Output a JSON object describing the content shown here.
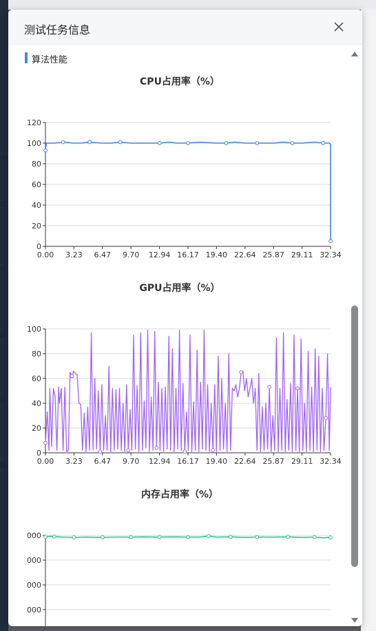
{
  "dialog": {
    "title": "测试任务信息",
    "section_label": "算法性能"
  },
  "background": {
    "edge_labels": [
      "m",
      "0",
      "0",
      "0",
      "0",
      "0"
    ]
  },
  "colors": {
    "cpu": "#3a86ef",
    "gpu": "#9f63f5",
    "memory": "#2cc38b",
    "section_accent": "#3a8ee6"
  },
  "chart_data": [
    {
      "type": "line",
      "title": "CPU占用率（%）",
      "x_ticks": [
        "0.00",
        "3.23",
        "6.47",
        "9.70",
        "12.94",
        "16.17",
        "19.40",
        "22.64",
        "25.87",
        "29.11",
        "32.34"
      ],
      "y_ticks": [
        "0",
        "20",
        "40",
        "60",
        "80",
        "100",
        "120"
      ],
      "xlim": [
        0,
        32.34
      ],
      "ylim": [
        0,
        120
      ],
      "grid": true,
      "series": [
        {
          "x": [
            0.0,
            0.1,
            1.0,
            2.0,
            3.23,
            4.0,
            5.0,
            6.47,
            7.5,
            8.5,
            9.7,
            11.0,
            12.94,
            14.0,
            15.0,
            16.17,
            17.5,
            19.4,
            20.5,
            21.5,
            22.64,
            24.0,
            25.87,
            27.0,
            28.0,
            29.11,
            30.5,
            31.5,
            32.2,
            32.34,
            32.34
          ],
          "values": [
            93,
            100,
            100,
            101,
            100,
            100,
            101,
            100,
            100,
            101,
            100,
            100,
            100,
            101,
            100,
            100,
            101,
            100,
            100,
            101,
            100,
            100,
            100,
            101,
            100,
            100,
            101,
            100,
            100,
            99,
            5
          ]
        }
      ]
    },
    {
      "type": "line",
      "title": "GPU占用率（%）",
      "x_ticks": [
        "0.00",
        "3.23",
        "6.47",
        "9.70",
        "12.94",
        "16.17",
        "19.40",
        "22.64",
        "25.87",
        "29.11",
        "32.34"
      ],
      "y_ticks": [
        "0",
        "20",
        "40",
        "60",
        "80",
        "100"
      ],
      "xlim": [
        0,
        32.34
      ],
      "ylim": [
        0,
        100
      ],
      "grid": true,
      "series": [
        {
          "x": [
            0.0,
            0.2,
            0.4,
            0.5,
            0.7,
            0.9,
            1.1,
            1.3,
            1.5,
            1.6,
            1.8,
            2.0,
            2.2,
            2.4,
            2.6,
            2.8,
            3.0,
            3.2,
            3.4,
            3.6,
            3.8,
            4.0,
            4.2,
            4.4,
            4.6,
            4.8,
            5.0,
            5.2,
            5.4,
            5.6,
            5.8,
            6.0,
            6.2,
            6.4,
            6.6,
            6.8,
            7.0,
            7.2,
            7.4,
            7.6,
            7.8,
            8.0,
            8.2,
            8.4,
            8.6,
            8.8,
            9.0,
            9.2,
            9.4,
            9.6,
            9.8,
            10.0,
            10.2,
            10.4,
            10.6,
            10.8,
            11.0,
            11.2,
            11.4,
            11.6,
            11.8,
            12.0,
            12.2,
            12.4,
            12.6,
            12.8,
            13.0,
            13.2,
            13.4,
            13.6,
            13.8,
            14.0,
            14.2,
            14.4,
            14.6,
            14.8,
            15.0,
            15.2,
            15.4,
            15.6,
            15.8,
            16.0,
            16.2,
            16.4,
            16.6,
            16.8,
            17.0,
            17.2,
            17.4,
            17.6,
            17.8,
            18.0,
            18.2,
            18.4,
            18.6,
            18.8,
            19.0,
            19.2,
            19.4,
            19.6,
            19.8,
            20.0,
            20.2,
            20.4,
            20.6,
            20.8,
            21.0,
            21.2,
            21.4,
            21.6,
            21.8,
            22.0,
            22.2,
            22.4,
            22.6,
            22.8,
            23.0,
            23.2,
            23.4,
            23.6,
            23.8,
            24.0,
            24.2,
            24.4,
            24.6,
            24.8,
            25.0,
            25.2,
            25.4,
            25.6,
            25.8,
            26.0,
            26.2,
            26.4,
            26.6,
            26.8,
            27.0,
            27.2,
            27.4,
            27.6,
            27.8,
            28.0,
            28.2,
            28.4,
            28.6,
            28.8,
            29.0,
            29.2,
            29.4,
            29.6,
            29.8,
            30.0,
            30.2,
            30.4,
            30.6,
            30.8,
            31.0,
            31.2,
            31.4,
            31.6,
            31.8,
            32.0,
            32.2,
            32.34
          ],
          "values": [
            8,
            33,
            2,
            52,
            5,
            52,
            45,
            2,
            53,
            40,
            52,
            2,
            53,
            1,
            2,
            65,
            62,
            66,
            64,
            63,
            40,
            39,
            2,
            32,
            1,
            37,
            2,
            97,
            2,
            60,
            3,
            50,
            1,
            55,
            2,
            30,
            2,
            70,
            1,
            52,
            2,
            51,
            3,
            52,
            2,
            40,
            1,
            55,
            2,
            35,
            2,
            95,
            3,
            54,
            1,
            97,
            2,
            42,
            4,
            99,
            1,
            45,
            2,
            98,
            4,
            57,
            2,
            52,
            1,
            53,
            3,
            94,
            2,
            84,
            1,
            52,
            3,
            99,
            2,
            56,
            1,
            33,
            2,
            95,
            1,
            41,
            2,
            83,
            1,
            57,
            3,
            99,
            2,
            55,
            1,
            40,
            2,
            55,
            1,
            78,
            2,
            60,
            3,
            40,
            1,
            80,
            2,
            52,
            50,
            55,
            45,
            52,
            65,
            66,
            50,
            60,
            45,
            52,
            60,
            40,
            52,
            2,
            64,
            1,
            37,
            2,
            40,
            3,
            53,
            1,
            30,
            2,
            93,
            1,
            52,
            2,
            97,
            1,
            43,
            2,
            56,
            1,
            95,
            2,
            52,
            1,
            92,
            2,
            40,
            1,
            82,
            2,
            53,
            1,
            84,
            2,
            78,
            1,
            52,
            2,
            28,
            80,
            2,
            53
          ]
        }
      ]
    },
    {
      "type": "line",
      "title": "内存占用率（%）",
      "x_ticks": [
        "0.00",
        "3.23",
        "6.47",
        "9.70",
        "12.94",
        "16.17",
        "19.40",
        "22.64",
        "25.87",
        "29.11",
        "32.34"
      ],
      "y_ticks": [
        "000",
        "000",
        "000",
        "000",
        "000"
      ],
      "xlim": [
        0,
        32.34
      ],
      "grid": true,
      "series": [
        {
          "x": [
            0.0,
            0.5,
            1.0,
            2.0,
            3.23,
            4.5,
            6.47,
            8.0,
            9.7,
            11.0,
            12.94,
            14.5,
            16.17,
            17.5,
            18.5,
            19.4,
            21.0,
            22.64,
            24.0,
            25.87,
            27.5,
            29.11,
            30.5,
            31.5,
            32.34
          ],
          "values": [
            0.94,
            0.96,
            0.95,
            0.93,
            0.92,
            0.93,
            0.92,
            0.93,
            0.93,
            0.94,
            0.93,
            0.94,
            0.93,
            0.93,
            0.97,
            0.93,
            0.94,
            0.92,
            0.93,
            0.93,
            0.94,
            0.92,
            0.93,
            0.9,
            0.92
          ]
        }
      ]
    }
  ]
}
